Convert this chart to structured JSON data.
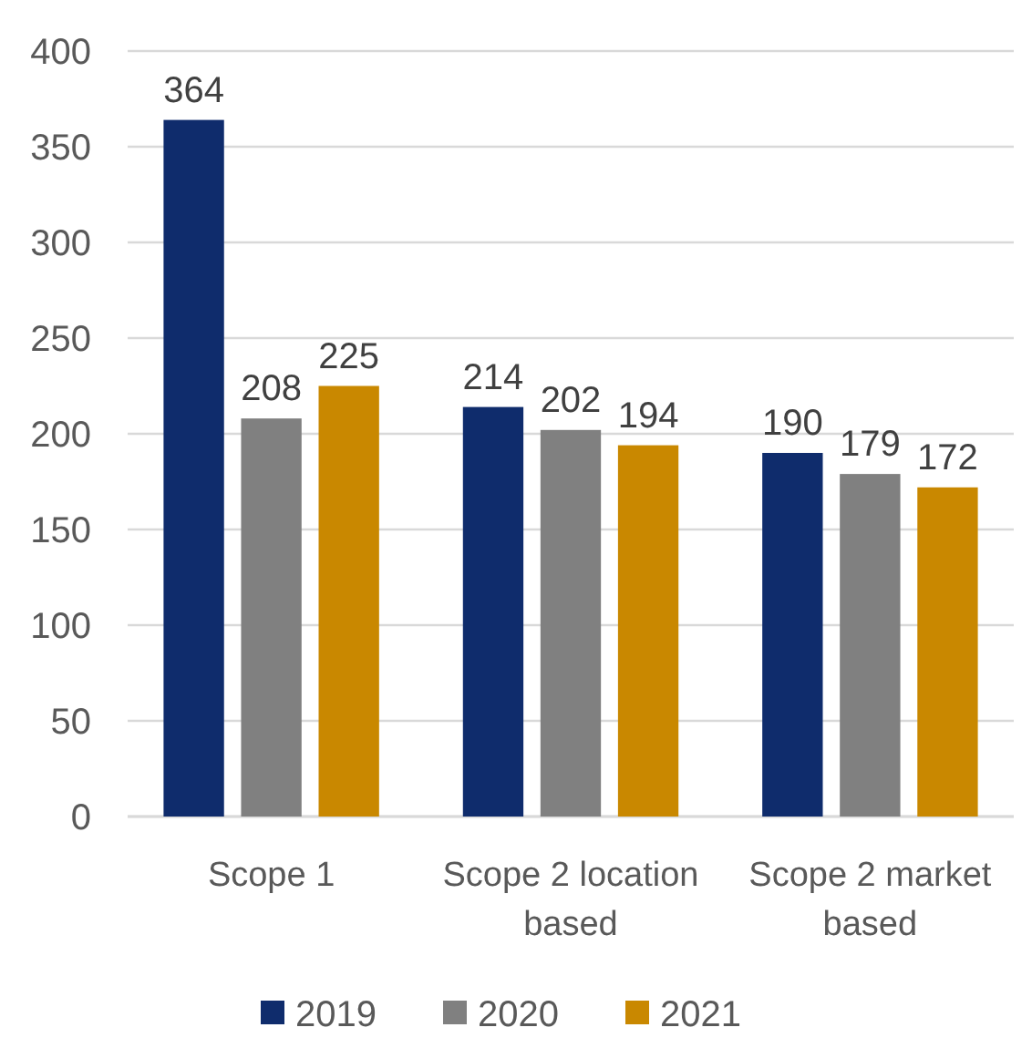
{
  "chart_data": {
    "type": "bar",
    "categories": [
      "Scope 1",
      "Scope 2 location based",
      "Scope 2 market based"
    ],
    "series": [
      {
        "name": "2019",
        "color": "#0f2c6c",
        "values": [
          364,
          214,
          190
        ]
      },
      {
        "name": "2020",
        "color": "#808080",
        "values": [
          208,
          202,
          179
        ]
      },
      {
        "name": "2021",
        "color": "#c98800",
        "values": [
          225,
          194,
          172
        ]
      }
    ],
    "ylim": [
      0,
      400
    ],
    "yticks": [
      0,
      50,
      100,
      150,
      200,
      250,
      300,
      350,
      400
    ],
    "grid": "y",
    "legend": "bottom",
    "data_labels": true
  }
}
